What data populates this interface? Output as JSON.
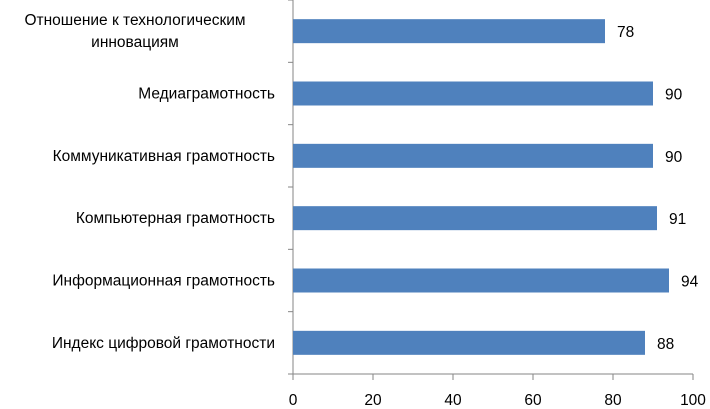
{
  "chart_data": {
    "type": "bar",
    "orientation": "horizontal",
    "categories": [
      "Индекс цифровой грамотности",
      "Информационная грамотность",
      "Компьютерная грамотность",
      "Коммуникативная грамотность",
      "Медиаграмотность",
      "Отношение к технологическим инновациям"
    ],
    "category_lines": [
      [
        "Индекс цифровой грамотности"
      ],
      [
        "Информационная грамотность"
      ],
      [
        "Компьютерная грамотность"
      ],
      [
        "Коммуникативная грамотность"
      ],
      [
        "Медиаграмотность"
      ],
      [
        "Отношение к технологическим",
        "инновациям"
      ]
    ],
    "values": [
      88,
      94,
      91,
      90,
      90,
      78
    ],
    "data_labels": [
      "88",
      "94",
      "91",
      "90",
      "90",
      "78"
    ],
    "xlim": [
      0,
      100
    ],
    "xticks": [
      0,
      20,
      40,
      60,
      80,
      100
    ],
    "xtick_labels": [
      "0",
      "20",
      "40",
      "60",
      "80",
      "100"
    ],
    "title": "",
    "xlabel": "",
    "ylabel": "",
    "grid": false,
    "legend": "none",
    "bar_color": "#4f81bd",
    "axis_color": "#868686"
  }
}
